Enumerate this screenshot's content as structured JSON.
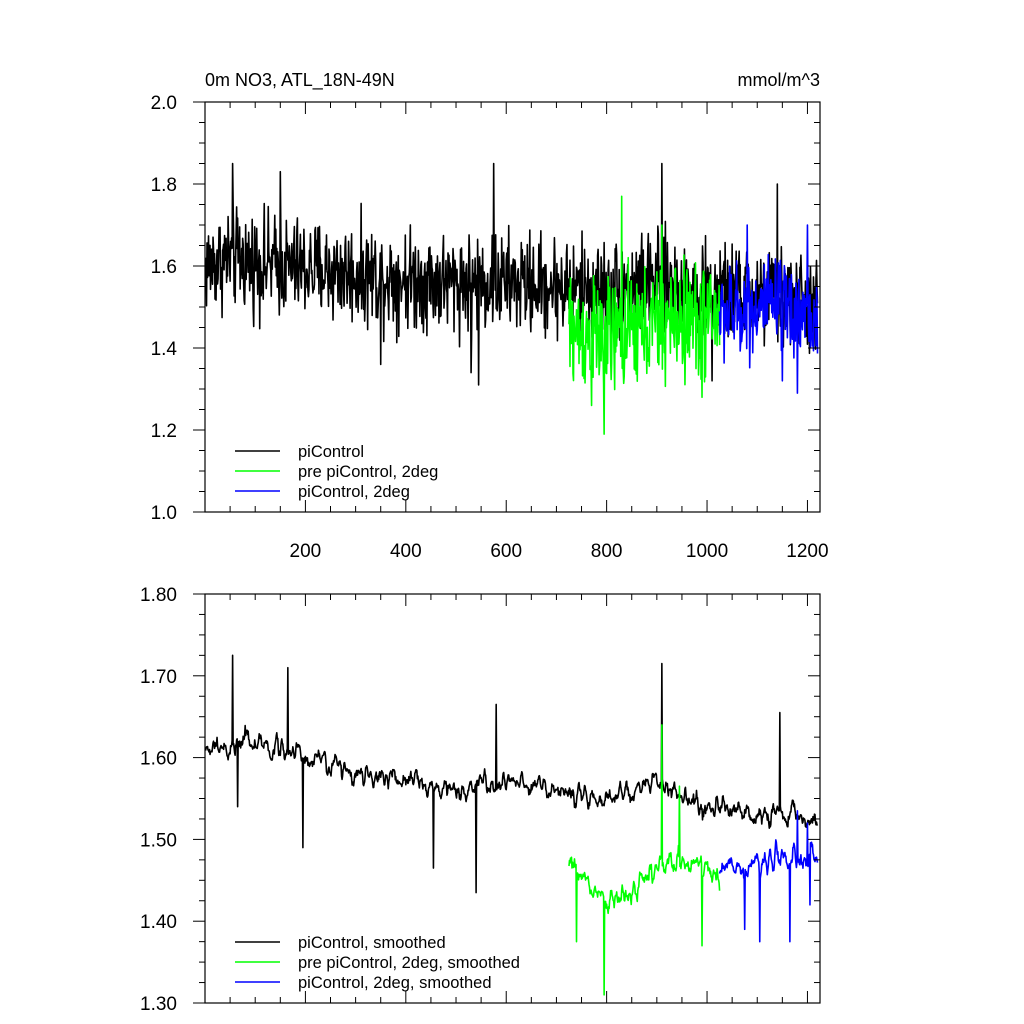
{
  "colors": {
    "piControl": "#000000",
    "pre_piControl_2deg": "#00ff00",
    "piControl_2deg": "#0000ff"
  },
  "chart_data": [
    {
      "type": "line",
      "title": "0m NO3, ATL_18N-49N",
      "units": "mmol/m^3",
      "xlim": [
        0,
        1225
      ],
      "ylim": [
        1.0,
        2.0
      ],
      "xticks": [
        200,
        400,
        600,
        800,
        1000,
        1200
      ],
      "xtick_labels": [
        "200",
        "400",
        "600",
        "800",
        "1000",
        "1200"
      ],
      "yticks": [
        1.0,
        1.2,
        1.4,
        1.6,
        1.8,
        2.0
      ],
      "ytick_labels": [
        "1.0",
        "1.2",
        "1.4",
        "1.6",
        "1.8",
        "2.0"
      ],
      "legend": [
        "piControl",
        "pre piControl, 2deg",
        "piControl, 2deg"
      ],
      "legend_position": "bottom-left",
      "series": [
        {
          "name": "piControl",
          "color": "#000000",
          "x_range": [
            1,
            1220
          ],
          "mean": 1.575,
          "spread": 0.085,
          "anchors": [
            [
              1,
              1.6
            ],
            [
              50,
              1.62
            ],
            [
              150,
              1.6
            ],
            [
              300,
              1.58
            ],
            [
              500,
              1.56
            ],
            [
              600,
              1.56
            ],
            [
              700,
              1.55
            ],
            [
              800,
              1.54
            ],
            [
              900,
              1.56
            ],
            [
              1000,
              1.53
            ],
            [
              1100,
              1.53
            ],
            [
              1220,
              1.5
            ]
          ],
          "peaks": [
            [
              55,
              1.85
            ],
            [
              150,
              1.83
            ],
            [
              575,
              1.85
            ],
            [
              910,
              1.85
            ],
            [
              1140,
              1.8
            ]
          ],
          "troughs": [
            [
              530,
              1.34
            ],
            [
              545,
              1.31
            ],
            [
              350,
              1.36
            ],
            [
              1010,
              1.32
            ]
          ]
        },
        {
          "name": "pre piControl, 2deg",
          "color": "#00ff00",
          "x_range": [
            725,
            1025
          ],
          "mean": 1.46,
          "spread": 0.1,
          "anchors": [
            [
              725,
              1.44
            ],
            [
              800,
              1.42
            ],
            [
              900,
              1.46
            ],
            [
              1000,
              1.47
            ],
            [
              1025,
              1.48
            ]
          ],
          "peaks": [
            [
              830,
              1.77
            ],
            [
              910,
              1.7
            ]
          ],
          "troughs": [
            [
              795,
              1.19
            ],
            [
              770,
              1.26
            ],
            [
              990,
              1.28
            ]
          ]
        },
        {
          "name": "piControl, 2deg",
          "color": "#0000ff",
          "x_range": [
            1025,
            1220
          ],
          "mean": 1.49,
          "spread": 0.08,
          "anchors": [
            [
              1025,
              1.48
            ],
            [
              1100,
              1.5
            ],
            [
              1160,
              1.5
            ],
            [
              1220,
              1.47
            ]
          ],
          "peaks": [
            [
              1080,
              1.7
            ],
            [
              1200,
              1.7
            ]
          ],
          "troughs": [
            [
              1180,
              1.29
            ],
            [
              1150,
              1.32
            ]
          ]
        }
      ]
    },
    {
      "type": "line",
      "xlim": [
        0,
        1225
      ],
      "ylim": [
        1.3,
        1.8
      ],
      "xticks": [
        200,
        400,
        600,
        800,
        1000,
        1200
      ],
      "yticks": [
        1.3,
        1.4,
        1.5,
        1.6,
        1.7,
        1.8
      ],
      "ytick_labels": [
        "1.30",
        "1.40",
        "1.50",
        "1.60",
        "1.70",
        "1.80"
      ],
      "legend": [
        "piControl, smoothed",
        "pre piControl, 2deg, smoothed",
        "piControl, 2deg, smoothed"
      ],
      "legend_position": "bottom-left",
      "series": [
        {
          "name": "piControl, smoothed",
          "color": "#000000",
          "x_range": [
            1,
            1220
          ],
          "mean": 1.575,
          "spread": 0.025,
          "anchors": [
            [
              1,
              1.61
            ],
            [
              100,
              1.62
            ],
            [
              200,
              1.6
            ],
            [
              300,
              1.58
            ],
            [
              400,
              1.57
            ],
            [
              500,
              1.56
            ],
            [
              600,
              1.57
            ],
            [
              700,
              1.56
            ],
            [
              800,
              1.55
            ],
            [
              900,
              1.57
            ],
            [
              1000,
              1.54
            ],
            [
              1100,
              1.53
            ],
            [
              1220,
              1.52
            ]
          ],
          "peaks": [
            [
              55,
              1.725
            ],
            [
              910,
              1.715
            ],
            [
              165,
              1.71
            ],
            [
              1145,
              1.655
            ],
            [
              580,
              1.665
            ]
          ],
          "troughs": [
            [
              540,
              1.435
            ],
            [
              195,
              1.49
            ],
            [
              455,
              1.465
            ],
            [
              65,
              1.54
            ]
          ]
        },
        {
          "name": "pre piControl, 2deg, smoothed",
          "color": "#00ff00",
          "x_range": [
            725,
            1025
          ],
          "mean": 1.45,
          "spread": 0.03,
          "anchors": [
            [
              725,
              1.47
            ],
            [
              800,
              1.42
            ],
            [
              860,
              1.44
            ],
            [
              900,
              1.47
            ],
            [
              960,
              1.47
            ],
            [
              1025,
              1.46
            ]
          ],
          "peaks": [
            [
              910,
              1.64
            ],
            [
              945,
              1.565
            ]
          ],
          "troughs": [
            [
              795,
              1.31
            ],
            [
              990,
              1.37
            ],
            [
              740,
              1.375
            ]
          ]
        },
        {
          "name": "piControl, 2deg, smoothed",
          "color": "#0000ff",
          "x_range": [
            1025,
            1220
          ],
          "mean": 1.47,
          "spread": 0.03,
          "anchors": [
            [
              1025,
              1.46
            ],
            [
              1100,
              1.47
            ],
            [
              1160,
              1.48
            ],
            [
              1220,
              1.47
            ]
          ],
          "peaks": [
            [
              1180,
              1.535
            ],
            [
              1200,
              1.52
            ]
          ],
          "troughs": [
            [
              1105,
              1.375
            ],
            [
              1075,
              1.39
            ],
            [
              1165,
              1.375
            ],
            [
              1205,
              1.42
            ]
          ]
        }
      ]
    }
  ]
}
